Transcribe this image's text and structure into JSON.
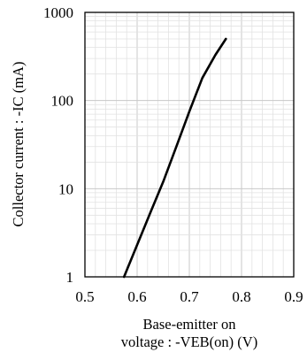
{
  "chart_data": {
    "type": "line",
    "title": "",
    "xlabel_lines": [
      "Base-emitter on",
      "voltage : -VEB(on) (V)"
    ],
    "ylabel": "Collector current : -IC (mA)",
    "xlim": [
      0.5,
      0.9
    ],
    "ylim": [
      1,
      1000
    ],
    "yscale": "log",
    "grid": true,
    "x_ticks": [
      "0.5",
      "0.6",
      "0.7",
      "0.8",
      "0.9"
    ],
    "y_ticks": [
      "1",
      "10",
      "100",
      "1000"
    ],
    "series": [
      {
        "color": "#000000",
        "x": [
          0.575,
          0.6,
          0.625,
          0.65,
          0.675,
          0.7,
          0.725,
          0.75,
          0.77
        ],
        "y": [
          1,
          2.3,
          5.3,
          12,
          30,
          75,
          180,
          330,
          500
        ]
      }
    ]
  }
}
